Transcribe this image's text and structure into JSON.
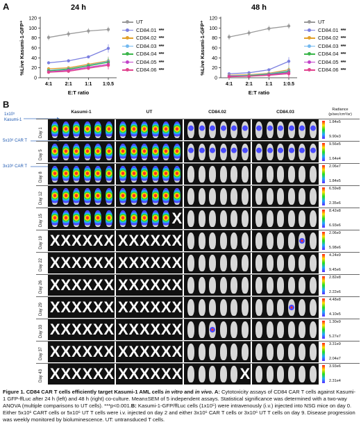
{
  "panel_a_label": "A",
  "panel_b_label": "B",
  "chart_data": [
    {
      "type": "line",
      "title": "24 h",
      "xlabel": "E:T ratio",
      "ylabel": "%Live Kasumi-1-GFP⁺",
      "categories": [
        "4:1",
        "2:1",
        "1:1",
        "1:0.5"
      ],
      "ylim": [
        0,
        120
      ],
      "yticks": [
        0,
        20,
        40,
        60,
        80,
        100,
        120
      ],
      "series": [
        {
          "name": "UT",
          "color": "#9a9a9a",
          "values": [
            81,
            88,
            94,
            97
          ],
          "sig": ""
        },
        {
          "name": "CD84.01",
          "color": "#7b7fe0",
          "values": [
            30,
            34,
            42,
            59
          ],
          "sig": "***"
        },
        {
          "name": "CD84.02",
          "color": "#e2a02a",
          "values": [
            18,
            20,
            27,
            34
          ],
          "sig": "***"
        },
        {
          "name": "CD84.03",
          "color": "#72b8ef",
          "values": [
            15,
            18,
            25,
            33
          ],
          "sig": "***"
        },
        {
          "name": "CD84.04",
          "color": "#3ab54a",
          "values": [
            14,
            17,
            24,
            31
          ],
          "sig": "***"
        },
        {
          "name": "CD84.05",
          "color": "#c241c9",
          "values": [
            12,
            15,
            21,
            27
          ],
          "sig": "***"
        },
        {
          "name": "CD84.06",
          "color": "#e0438e",
          "values": [
            11,
            13,
            19,
            25
          ],
          "sig": "***"
        }
      ]
    },
    {
      "type": "line",
      "title": "48 h",
      "xlabel": "E:T ratio",
      "ylabel": "%Live Kasumi-1-GFP⁺",
      "categories": [
        "4:1",
        "2:1",
        "1:1",
        "1:0.5"
      ],
      "ylim": [
        0,
        120
      ],
      "yticks": [
        0,
        20,
        40,
        60,
        80,
        100,
        120
      ],
      "series": [
        {
          "name": "UT",
          "color": "#9a9a9a",
          "values": [
            82,
            90,
            99,
            104
          ],
          "sig": ""
        },
        {
          "name": "CD84.01",
          "color": "#7b7fe0",
          "values": [
            8,
            10,
            16,
            33
          ],
          "sig": "***"
        },
        {
          "name": "CD84.02",
          "color": "#e2a02a",
          "values": [
            5,
            6,
            9,
            16
          ],
          "sig": "***"
        },
        {
          "name": "CD84.03",
          "color": "#72b8ef",
          "values": [
            4,
            5,
            8,
            14
          ],
          "sig": "***"
        },
        {
          "name": "CD84.04",
          "color": "#3ab54a",
          "values": [
            3,
            4,
            7,
            12
          ],
          "sig": "***"
        },
        {
          "name": "CD84.05",
          "color": "#c241c9",
          "values": [
            3,
            3,
            6,
            10
          ],
          "sig": "***"
        },
        {
          "name": "CD84.06",
          "color": "#e0438e",
          "values": [
            2,
            3,
            5,
            8
          ],
          "sig": "***"
        }
      ]
    }
  ],
  "panel_b": {
    "columns": [
      "Kasumi-1",
      "UT",
      "CD84.02",
      "CD84.03"
    ],
    "radiance_label": "Radiance (p/sec/cm²/sr)",
    "annotations": [
      "1x10⁵ Kasumi-1",
      "5x10⁶ CAR T",
      "3x10⁶ CAR T"
    ],
    "rows": [
      {
        "day": "Day 1",
        "max": "1.84e5",
        "min": "9.90e3",
        "dead": [
          0,
          0,
          0,
          0
        ],
        "signal": "high"
      },
      {
        "day": "Day 5",
        "max": "9.56e5",
        "min": "1.64e4",
        "dead": [
          0,
          0,
          0,
          0
        ],
        "signal": "high"
      },
      {
        "day": "Day 8",
        "max": "2.06e7",
        "min": "1.84e5",
        "dead": [
          0,
          0,
          0,
          0
        ],
        "signal": "high"
      },
      {
        "day": "Day 12",
        "max": "6.59e8",
        "min": "2.35e6",
        "dead": [
          0,
          0,
          0,
          0
        ],
        "signal": "high"
      },
      {
        "day": "Day 15",
        "max": "8.42e8",
        "min": "6.93e6",
        "dead": [
          0,
          1,
          0,
          0
        ],
        "signal": "high"
      },
      {
        "day": "Day 19",
        "max": "2.06e9",
        "min": "5.98e6",
        "dead": [
          6,
          6,
          0,
          0
        ],
        "signal": "low"
      },
      {
        "day": "Day 22",
        "max": "4.24e9",
        "min": "9.45e6",
        "dead": [
          6,
          6,
          0,
          0
        ],
        "signal": "low"
      },
      {
        "day": "Day 26",
        "max": "2.82e8",
        "min": "2.22e6",
        "dead": [
          6,
          6,
          0,
          0
        ],
        "signal": "low"
      },
      {
        "day": "Day 29",
        "max": "4.48e8",
        "min": "4.10e5",
        "dead": [
          6,
          6,
          0,
          0
        ],
        "signal": "low"
      },
      {
        "day": "Day 33",
        "max": "1.30e9",
        "min": "5.27e7",
        "dead": [
          6,
          6,
          0,
          0
        ],
        "signal": "low"
      },
      {
        "day": "Day 37",
        "max": "3.31e9",
        "min": "2.04e7",
        "dead": [
          6,
          6,
          0,
          0
        ],
        "signal": "low"
      },
      {
        "day": "Day 43",
        "max": "3.93e6",
        "min": "2.31e4",
        "dead": [
          6,
          6,
          1,
          0
        ],
        "signal": "low"
      }
    ]
  },
  "caption": {
    "title": "Figure 1. CD84 CAR T cells efficiently target Kasumi-1 AML cells ",
    "title_italic": "in vitro",
    "title_and": " and ",
    "title_italic2": "in vivo",
    "title_end": ". ",
    "a_label": "A:",
    "a_text": " Cytotoxicity assays of CD84 CAR T cells against Kasumi-1 GFP-ffLuc after 24 h (left) and 48 h (right) co-culture. Mean±SEM of 5 independent assays. Statistical significance was determined with a two-way ANOVA (multiple comparisons to UT cells). ***p<0.001.",
    "b_label": "B:",
    "b_text": " Kasumi-1-GFP/ffLuc cells (1x10⁵) were intravenously (i.v.) injected into NSG mice on day 0. Either 5x10⁶ CART cells or 5x10⁶ UT T cells were i.v. injected on day 2 and either 3x10⁶ CAR T cells or 3x10⁶ UT T cells on day 9. Disease progression was weekly monitored by bioluminescence. UT: untransduced T cells."
  }
}
